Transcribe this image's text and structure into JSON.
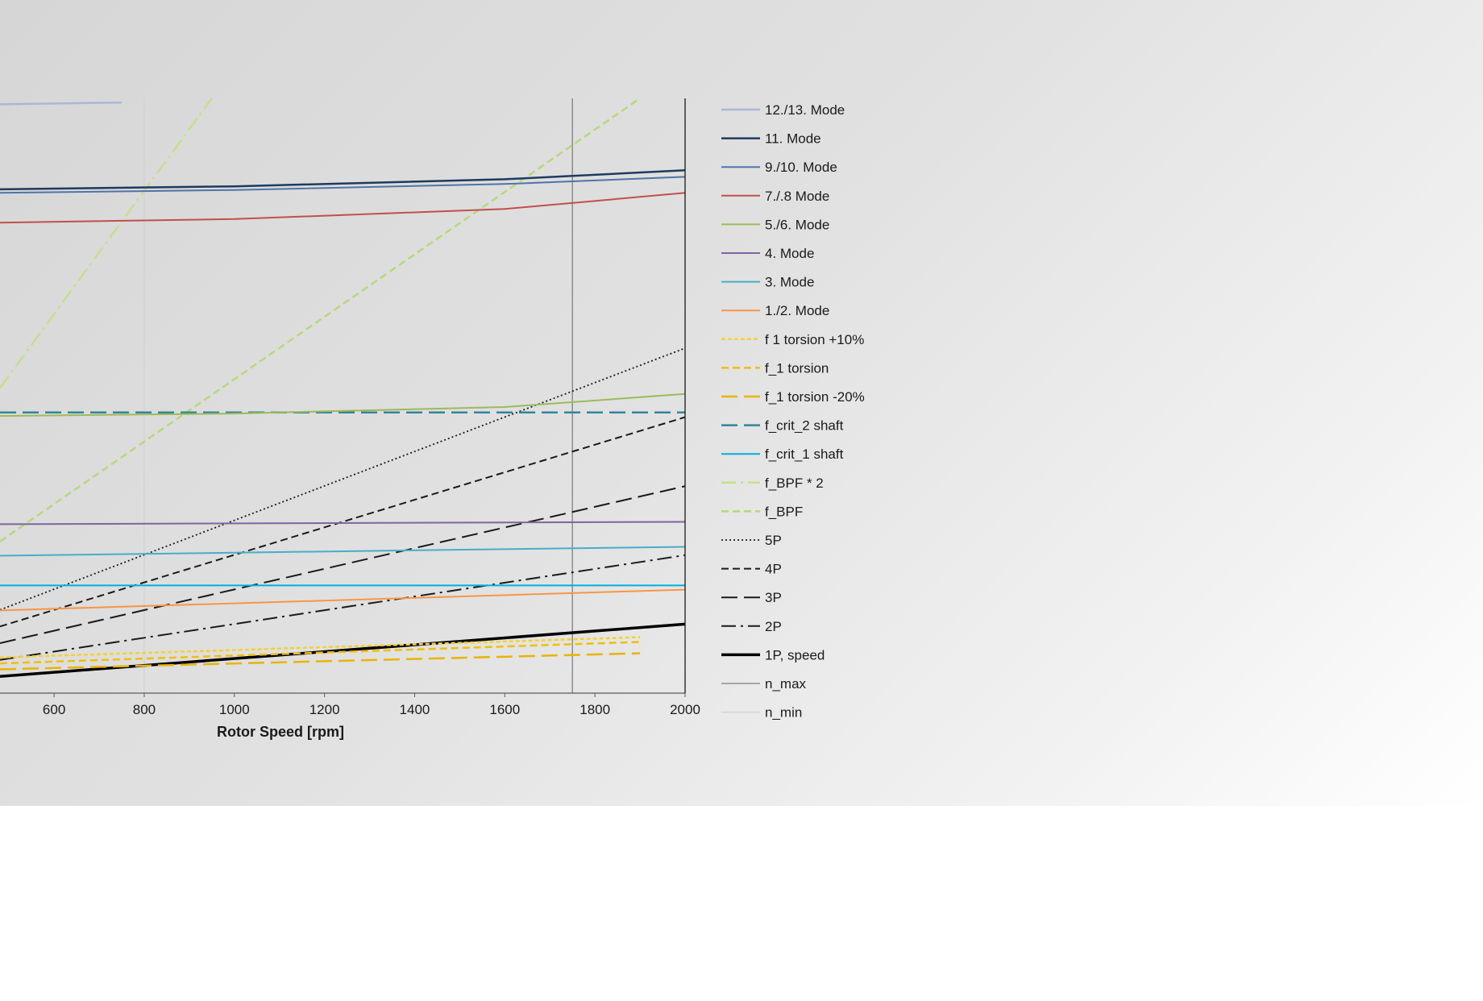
{
  "chart_data": {
    "type": "line",
    "xlabel": "Rotor Speed [rpm]",
    "ylabel": "",
    "xlim": [
      480,
      2000
    ],
    "ylim": [
      0,
      1
    ],
    "x_ticks": [
      600,
      800,
      1000,
      1200,
      1400,
      1600,
      1800,
      2000
    ],
    "grid": false,
    "legend_position": "right",
    "series": [
      {
        "name": "12./13. Mode",
        "color": "#a9b7d9",
        "dash": "solid",
        "width": 2.5,
        "x": [
          480,
          750
        ],
        "y": [
          0.99,
          0.993
        ]
      },
      {
        "name": "11. Mode",
        "color": "#1f3a5f",
        "dash": "solid",
        "width": 2.5,
        "x": [
          480,
          1000,
          1600,
          2000
        ],
        "y": [
          0.847,
          0.852,
          0.864,
          0.879
        ]
      },
      {
        "name": "9./10. Mode",
        "color": "#4f74a8",
        "dash": "solid",
        "width": 2,
        "x": [
          480,
          1000,
          1600,
          2000
        ],
        "y": [
          0.841,
          0.846,
          0.856,
          0.868
        ]
      },
      {
        "name": "7./.8 Mode",
        "color": "#c0504d",
        "dash": "solid",
        "width": 2,
        "x": [
          480,
          1000,
          1600,
          2000
        ],
        "y": [
          0.791,
          0.797,
          0.814,
          0.841
        ]
      },
      {
        "name": "5./6. Mode",
        "color": "#9bbb59",
        "dash": "solid",
        "width": 2,
        "x": [
          480,
          1000,
          1600,
          2000
        ],
        "y": [
          0.466,
          0.47,
          0.481,
          0.503
        ]
      },
      {
        "name": "4. Mode",
        "color": "#8064a2",
        "dash": "solid",
        "width": 2,
        "x": [
          480,
          2000
        ],
        "y": [
          0.284,
          0.288
        ]
      },
      {
        "name": "3. Mode",
        "color": "#4bacc6",
        "dash": "solid",
        "width": 2,
        "x": [
          480,
          2000
        ],
        "y": [
          0.231,
          0.246
        ]
      },
      {
        "name": "1./2. Mode",
        "color": "#f79646",
        "dash": "solid",
        "width": 2,
        "x": [
          480,
          2000
        ],
        "y": [
          0.139,
          0.174
        ]
      },
      {
        "name": "f  1 torsion +10%",
        "color": "#f2d230",
        "dash": "short",
        "width": 2.5,
        "x": [
          480,
          1900
        ],
        "y": [
          0.06,
          0.094
        ]
      },
      {
        "name": "f_1 torsion",
        "color": "#f0c000",
        "dash": "medium",
        "width": 2.5,
        "x": [
          480,
          1900
        ],
        "y": [
          0.05,
          0.086
        ]
      },
      {
        "name": "f_1 torsion -20%",
        "color": "#e8b500",
        "dash": "long",
        "width": 2.5,
        "x": [
          480,
          1900
        ],
        "y": [
          0.04,
          0.067
        ]
      },
      {
        "name": "f_crit_2 shaft",
        "color": "#31859c",
        "dash": "long",
        "width": 2.5,
        "x": [
          480,
          2000
        ],
        "y": [
          0.472,
          0.472
        ]
      },
      {
        "name": "f_crit_1 shaft",
        "color": "#00b0e0",
        "dash": "solid",
        "width": 2,
        "x": [
          480,
          2000
        ],
        "y": [
          0.181,
          0.181
        ]
      },
      {
        "name": "f_BPF * 2",
        "color": "#c4e08a",
        "dash": "dashdot",
        "width": 2.5,
        "x": [
          480,
          950
        ],
        "y": [
          0.513,
          1.0
        ]
      },
      {
        "name": "f_BPF",
        "color": "#b6d97a",
        "dash": "medium",
        "width": 2.5,
        "x": [
          480,
          1900
        ],
        "y": [
          0.255,
          1.0
        ]
      },
      {
        "name": "5P",
        "color": "#1a1a1a",
        "dash": "dotted",
        "width": 1.8,
        "x": [
          480,
          2000
        ],
        "y": [
          0.14,
          0.58
        ]
      },
      {
        "name": "4P",
        "color": "#1a1a1a",
        "dash": "medium",
        "width": 2,
        "x": [
          480,
          2000
        ],
        "y": [
          0.112,
          0.464
        ]
      },
      {
        "name": "3P",
        "color": "#1a1a1a",
        "dash": "long",
        "width": 2,
        "x": [
          480,
          2000
        ],
        "y": [
          0.084,
          0.348
        ]
      },
      {
        "name": "2P",
        "color": "#1a1a1a",
        "dash": "dashdot",
        "width": 2,
        "x": [
          480,
          2000
        ],
        "y": [
          0.056,
          0.232
        ]
      },
      {
        "name": "1P, speed",
        "color": "#000000",
        "dash": "solid",
        "width": 3.5,
        "x": [
          480,
          2000
        ],
        "y": [
          0.028,
          0.116
        ]
      },
      {
        "name": "n_max",
        "color": "#808080",
        "dash": "solid",
        "width": 1.3,
        "x": [
          1750,
          1750
        ],
        "y": [
          0,
          1
        ]
      },
      {
        "name": "n_min",
        "color": "#d2d2d2",
        "dash": "solid",
        "width": 1.3,
        "x": [
          800,
          800
        ],
        "y": [
          0,
          1
        ]
      }
    ]
  }
}
